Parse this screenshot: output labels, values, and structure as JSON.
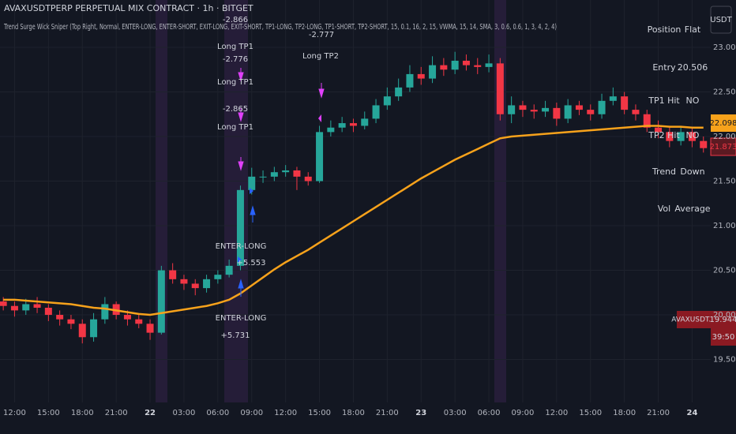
{
  "chart_data": {
    "type": "candlestick",
    "title": "AVAXUSDTPERP PERPETUAL MIX CONTRACT · 1h · BITGET",
    "subtitle": "Trend Surge Wick Sniper (Top Right, Normal, ENTER-LONG, ENTER-SHORT, EXIT-LONG, EXIT-SHORT, TP1-LONG, TP2-LONG, TP1-SHORT, TP2-SHORT, 15, 0.1, 16, 2, 15, VWMA, 15, 14, SMA, 3, 0.6, 0.6, 1, 3, 4, 2, 4)",
    "categories": [
      null,
      "12:00",
      null,
      null,
      "15:00",
      null,
      null,
      "18:00",
      null,
      null,
      "21:00",
      null,
      null,
      "22",
      null,
      null,
      "03:00",
      null,
      null,
      "06:00",
      null,
      null,
      "09:00",
      null,
      null,
      "12:00",
      null,
      null,
      "15:00",
      null,
      null,
      "18:00",
      null,
      null,
      "21:00",
      null,
      null,
      "23",
      null,
      null,
      "03:00",
      null,
      null,
      "06:00",
      null,
      null,
      "09:00",
      null,
      null,
      "12:00",
      null,
      null,
      "15:00",
      null,
      null,
      "18:00",
      null,
      null,
      "21:00",
      null,
      null,
      "24",
      null
    ],
    "open": [
      20.15,
      20.1,
      20.05,
      20.12,
      20.08,
      20.0,
      19.95,
      19.9,
      19.75,
      19.95,
      20.12,
      20.0,
      19.95,
      19.9,
      19.8,
      20.5,
      20.4,
      20.35,
      20.3,
      20.4,
      20.45,
      20.55,
      21.4,
      21.55,
      21.55,
      21.6,
      21.62,
      21.55,
      21.5,
      22.05,
      22.1,
      22.15,
      22.12,
      22.2,
      22.35,
      22.45,
      22.55,
      22.7,
      22.65,
      22.8,
      22.75,
      22.85,
      22.8,
      22.78,
      22.82,
      22.25,
      22.35,
      22.3,
      22.28,
      22.32,
      22.2,
      22.35,
      22.3,
      22.25,
      22.4,
      22.45,
      22.3,
      22.25,
      22.1,
      22.05,
      21.95,
      22.05,
      21.95
    ],
    "high": [
      20.2,
      20.15,
      20.18,
      20.2,
      20.12,
      20.05,
      20.0,
      19.95,
      20.02,
      20.2,
      20.15,
      20.05,
      20.0,
      19.95,
      20.55,
      20.58,
      20.45,
      20.4,
      20.45,
      20.5,
      20.62,
      21.45,
      21.65,
      21.62,
      21.66,
      21.68,
      21.66,
      21.6,
      22.12,
      22.18,
      22.22,
      22.2,
      22.28,
      22.42,
      22.55,
      22.65,
      22.8,
      22.78,
      22.9,
      22.88,
      22.95,
      22.92,
      22.88,
      22.92,
      22.88,
      22.45,
      22.4,
      22.36,
      22.4,
      22.38,
      22.42,
      22.4,
      22.36,
      22.48,
      22.55,
      22.5,
      22.36,
      22.3,
      22.18,
      22.1,
      22.12,
      22.1,
      22.0
    ],
    "low": [
      20.05,
      19.98,
      20.0,
      20.02,
      19.93,
      19.88,
      19.84,
      19.68,
      19.7,
      19.9,
      19.95,
      19.88,
      19.85,
      19.72,
      19.78,
      20.35,
      20.28,
      20.22,
      20.25,
      20.35,
      20.42,
      20.5,
      21.35,
      21.48,
      21.5,
      21.55,
      21.4,
      21.45,
      21.48,
      22.0,
      22.05,
      22.05,
      22.08,
      22.15,
      22.3,
      22.4,
      22.5,
      22.58,
      22.6,
      22.68,
      22.7,
      22.74,
      22.7,
      22.72,
      22.18,
      22.15,
      22.22,
      22.2,
      22.22,
      22.12,
      22.15,
      22.24,
      22.18,
      22.2,
      22.35,
      22.25,
      22.18,
      22.05,
      21.98,
      21.88,
      21.9,
      21.88,
      21.82
    ],
    "close": [
      20.1,
      20.05,
      20.12,
      20.08,
      20.0,
      19.95,
      19.9,
      19.75,
      19.95,
      20.12,
      20.0,
      19.95,
      19.9,
      19.8,
      20.5,
      20.4,
      20.35,
      20.3,
      20.4,
      20.45,
      20.55,
      21.4,
      21.55,
      21.55,
      21.6,
      21.62,
      21.55,
      21.5,
      22.05,
      22.1,
      22.15,
      22.12,
      22.2,
      22.35,
      22.45,
      22.55,
      22.7,
      22.65,
      22.8,
      22.75,
      22.85,
      22.8,
      22.78,
      22.82,
      22.25,
      22.35,
      22.3,
      22.28,
      22.32,
      22.2,
      22.35,
      22.3,
      22.25,
      22.4,
      22.45,
      22.3,
      22.25,
      22.1,
      22.05,
      21.95,
      22.05,
      21.95,
      21.87
    ],
    "up_color": "#26a69a",
    "down_color": "#f23645",
    "line": {
      "color": "#f7a21b",
      "values": [
        20.17,
        20.17,
        20.16,
        20.15,
        20.14,
        20.13,
        20.12,
        20.1,
        20.08,
        20.07,
        20.05,
        20.03,
        20.01,
        20.0,
        20.02,
        20.04,
        20.06,
        20.08,
        20.1,
        20.13,
        20.17,
        20.24,
        20.33,
        20.42,
        20.51,
        20.59,
        20.66,
        20.73,
        20.81,
        20.89,
        20.97,
        21.05,
        21.13,
        21.21,
        21.29,
        21.37,
        21.45,
        21.53,
        21.6,
        21.67,
        21.74,
        21.8,
        21.86,
        21.92,
        21.98,
        22.0,
        22.01,
        22.02,
        22.03,
        22.04,
        22.05,
        22.06,
        22.07,
        22.08,
        22.09,
        22.1,
        22.11,
        22.12,
        22.12,
        22.11,
        22.11,
        22.1,
        22.1
      ]
    },
    "ylim": [
      19.018,
      23.531
    ],
    "yticks": [
      {
        "value": 19.5,
        "label": "19.50"
      },
      {
        "value": 20,
        "label": "20.00"
      },
      {
        "value": 20.5,
        "label": "20.50"
      },
      {
        "value": 21,
        "label": "21.00"
      },
      {
        "value": 21.5,
        "label": "21.50"
      },
      {
        "value": 22,
        "label": "22.00"
      },
      {
        "value": 22.5,
        "label": "22.50"
      },
      {
        "value": 23,
        "label": "23.00"
      }
    ],
    "grid": true,
    "annotations": [
      "-2.866",
      "Long TP1",
      "-2.776",
      "Long TP1",
      "-2.865",
      "Long TP1",
      "-2.777",
      "Long TP2",
      "ENTER-LONG",
      "+5.553",
      "ENTER-LONG",
      "+5.731"
    ],
    "table": [
      [
        "Position",
        "Flat"
      ],
      [
        "Entry",
        "20.506"
      ],
      [
        "TP1 Hit",
        "NO"
      ],
      [
        "TP2 Hit",
        "NO"
      ],
      [
        "Trend",
        "Down"
      ],
      [
        "Vol",
        "Average"
      ]
    ],
    "price_labels": {
      "line_last": "22.098",
      "close_last": "21.873",
      "symbol": "AVAXUSDT.P",
      "price": "19.944",
      "countdown": "39:50",
      "currency": "USDT"
    }
  }
}
